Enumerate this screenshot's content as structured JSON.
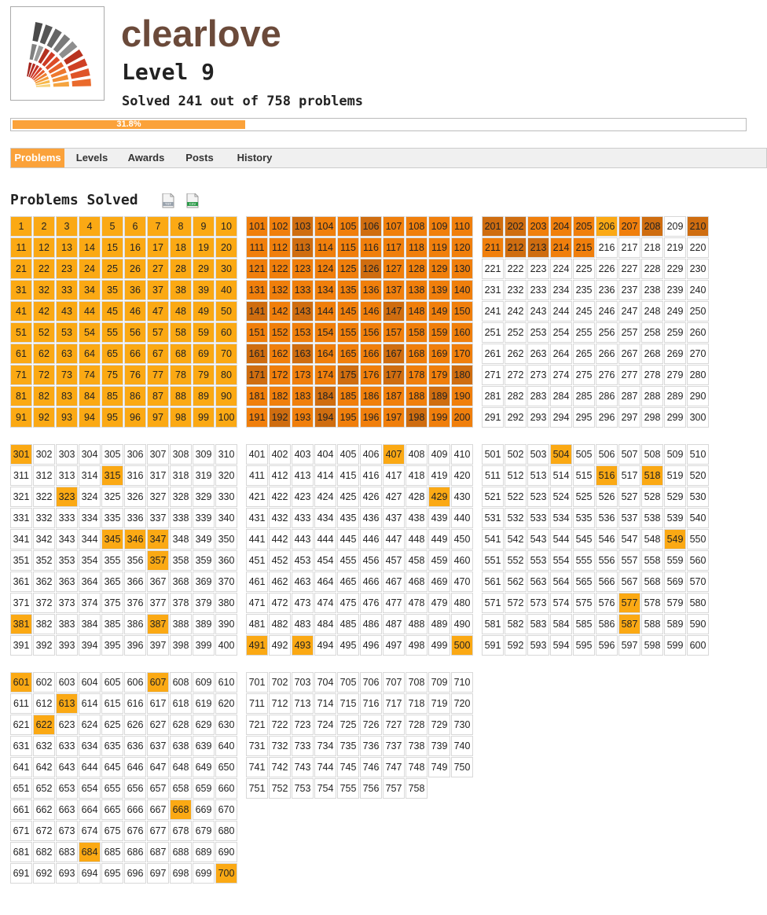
{
  "user": {
    "name": "clearlove",
    "level_label": "Level 9",
    "solved_text": "Solved 241 out of 758 problems"
  },
  "progress": {
    "percent": 31.8,
    "label": "31.8%"
  },
  "tabs": [
    {
      "label": "Problems",
      "active": true
    },
    {
      "label": "Levels",
      "active": false
    },
    {
      "label": "Awards",
      "active": false
    },
    {
      "label": "Posts",
      "active": false
    },
    {
      "label": "History",
      "active": false
    }
  ],
  "section": {
    "title": "Problems Solved",
    "icons": [
      {
        "name": "txt-file-icon",
        "label": "TXT"
      },
      {
        "name": "csv-file-icon",
        "label": "CSV"
      }
    ]
  },
  "problems": {
    "total": 758,
    "colors": {
      "light": "#fba914",
      "mid": "#f07f0c",
      "dark": "#cf6d10",
      "unsolved": "#ffffff"
    },
    "solved_light": [
      1,
      2,
      3,
      4,
      5,
      6,
      7,
      8,
      9,
      10,
      11,
      12,
      13,
      14,
      15,
      16,
      17,
      18,
      19,
      20,
      21,
      22,
      23,
      24,
      25,
      26,
      27,
      28,
      29,
      30,
      31,
      32,
      33,
      34,
      35,
      36,
      37,
      38,
      39,
      40,
      41,
      42,
      43,
      44,
      45,
      46,
      47,
      48,
      49,
      50,
      51,
      52,
      53,
      54,
      55,
      56,
      57,
      58,
      59,
      60,
      61,
      62,
      63,
      64,
      65,
      66,
      67,
      68,
      69,
      70,
      71,
      72,
      73,
      74,
      75,
      76,
      77,
      78,
      79,
      80,
      81,
      82,
      83,
      84,
      85,
      86,
      87,
      88,
      89,
      90,
      91,
      92,
      93,
      94,
      95,
      96,
      97,
      98,
      99,
      100,
      206,
      301,
      315,
      323,
      345,
      346,
      347,
      357,
      381,
      387,
      407,
      429,
      491,
      493,
      500,
      504,
      516,
      518,
      549,
      577,
      587,
      601,
      607,
      613,
      622,
      668,
      684,
      700
    ],
    "solved_mid": [
      101,
      102,
      104,
      105,
      107,
      108,
      109,
      110,
      111,
      112,
      114,
      115,
      116,
      117,
      118,
      119,
      120,
      121,
      122,
      123,
      124,
      125,
      127,
      128,
      129,
      130,
      131,
      132,
      133,
      134,
      135,
      136,
      137,
      138,
      139,
      140,
      142,
      144,
      145,
      146,
      148,
      149,
      150,
      151,
      152,
      153,
      154,
      155,
      156,
      157,
      158,
      159,
      160,
      162,
      164,
      165,
      166,
      168,
      169,
      170,
      172,
      173,
      174,
      176,
      178,
      179,
      181,
      182,
      183,
      185,
      186,
      187,
      188,
      190,
      191,
      193,
      195,
      196,
      197,
      199,
      200,
      203,
      204,
      205,
      207,
      211,
      214,
      215
    ],
    "solved_dark": [
      103,
      106,
      113,
      126,
      141,
      143,
      147,
      161,
      163,
      167,
      171,
      175,
      177,
      180,
      184,
      189,
      192,
      194,
      198,
      201,
      202,
      208,
      210,
      212,
      213
    ]
  }
}
